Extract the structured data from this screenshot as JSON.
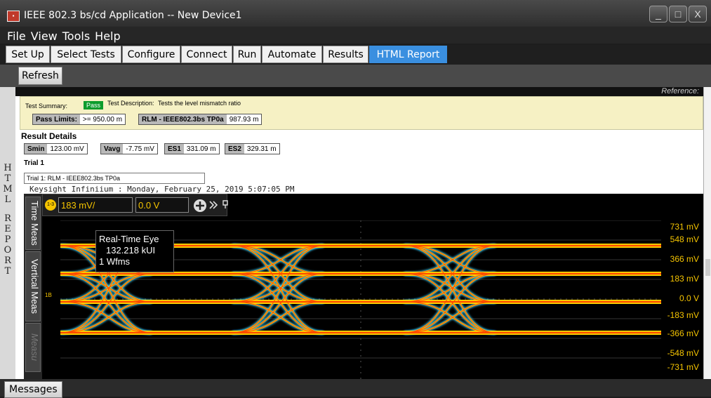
{
  "window": {
    "title": "IEEE 802.3 bs/cd Application -- New Device1",
    "min": "_",
    "max": "□",
    "close": "X"
  },
  "menu": [
    "File",
    "View",
    "Tools",
    "Help"
  ],
  "tabs": [
    "Set Up",
    "Select Tests",
    "Configure",
    "Connect",
    "Run",
    "Automate",
    "Results",
    "HTML Report"
  ],
  "active_tab": "HTML Report",
  "toolbar": {
    "refresh": "Refresh"
  },
  "sidebar_label": "HTML REPORT",
  "report": {
    "reference": "Reference:",
    "summary_label": "Test Summary:",
    "summary_status": "Pass",
    "description_label": "Test Description:",
    "description": "Tests the level mismatch ratio",
    "pass_limits_label": "Pass Limits:",
    "pass_limits_value": ">= 950.00 m",
    "rlm_label": "RLM - IEEE802.3bs TP0a",
    "rlm_value": "987.93 m",
    "result_details": "Result Details",
    "smin_label": "Smin",
    "smin_value": "123.00 mV",
    "vavg_label": "Vavg",
    "vavg_value": "-7.75 mV",
    "es1_label": "ES1",
    "es1_value": "331.09 m",
    "es2_label": "ES2",
    "es2_value": "329.31 m",
    "trial": "Trial 1",
    "trial_box": "Trial 1: RLM - IEEE802.3bs TP0a",
    "caption": "Keysight Infiniium : Monday, February 25, 2019 5:07:05 PM"
  },
  "scope": {
    "channel": "1-3",
    "scale": "183 mV/",
    "offset": "0.0 V",
    "vtabs": [
      "Time Meas",
      "Vertical Meas",
      "Measu"
    ],
    "overlay": [
      "Real-Time Eye",
      "132.218 kUI",
      "1 Wfms"
    ],
    "marker": "1B",
    "y_labels": [
      "731 mV",
      "548 mV",
      "366 mV",
      "183 mV",
      "0.0 V",
      "-183 mV",
      "-366 mV",
      "-548 mV",
      "-731 mV"
    ],
    "colors": {
      "trace_hot": "#ff4a00",
      "trace_warm": "#ffd400",
      "trace_cool": "#3cd0ff",
      "label": "#f5c400"
    }
  },
  "statusbar": {
    "messages": "Messages"
  }
}
